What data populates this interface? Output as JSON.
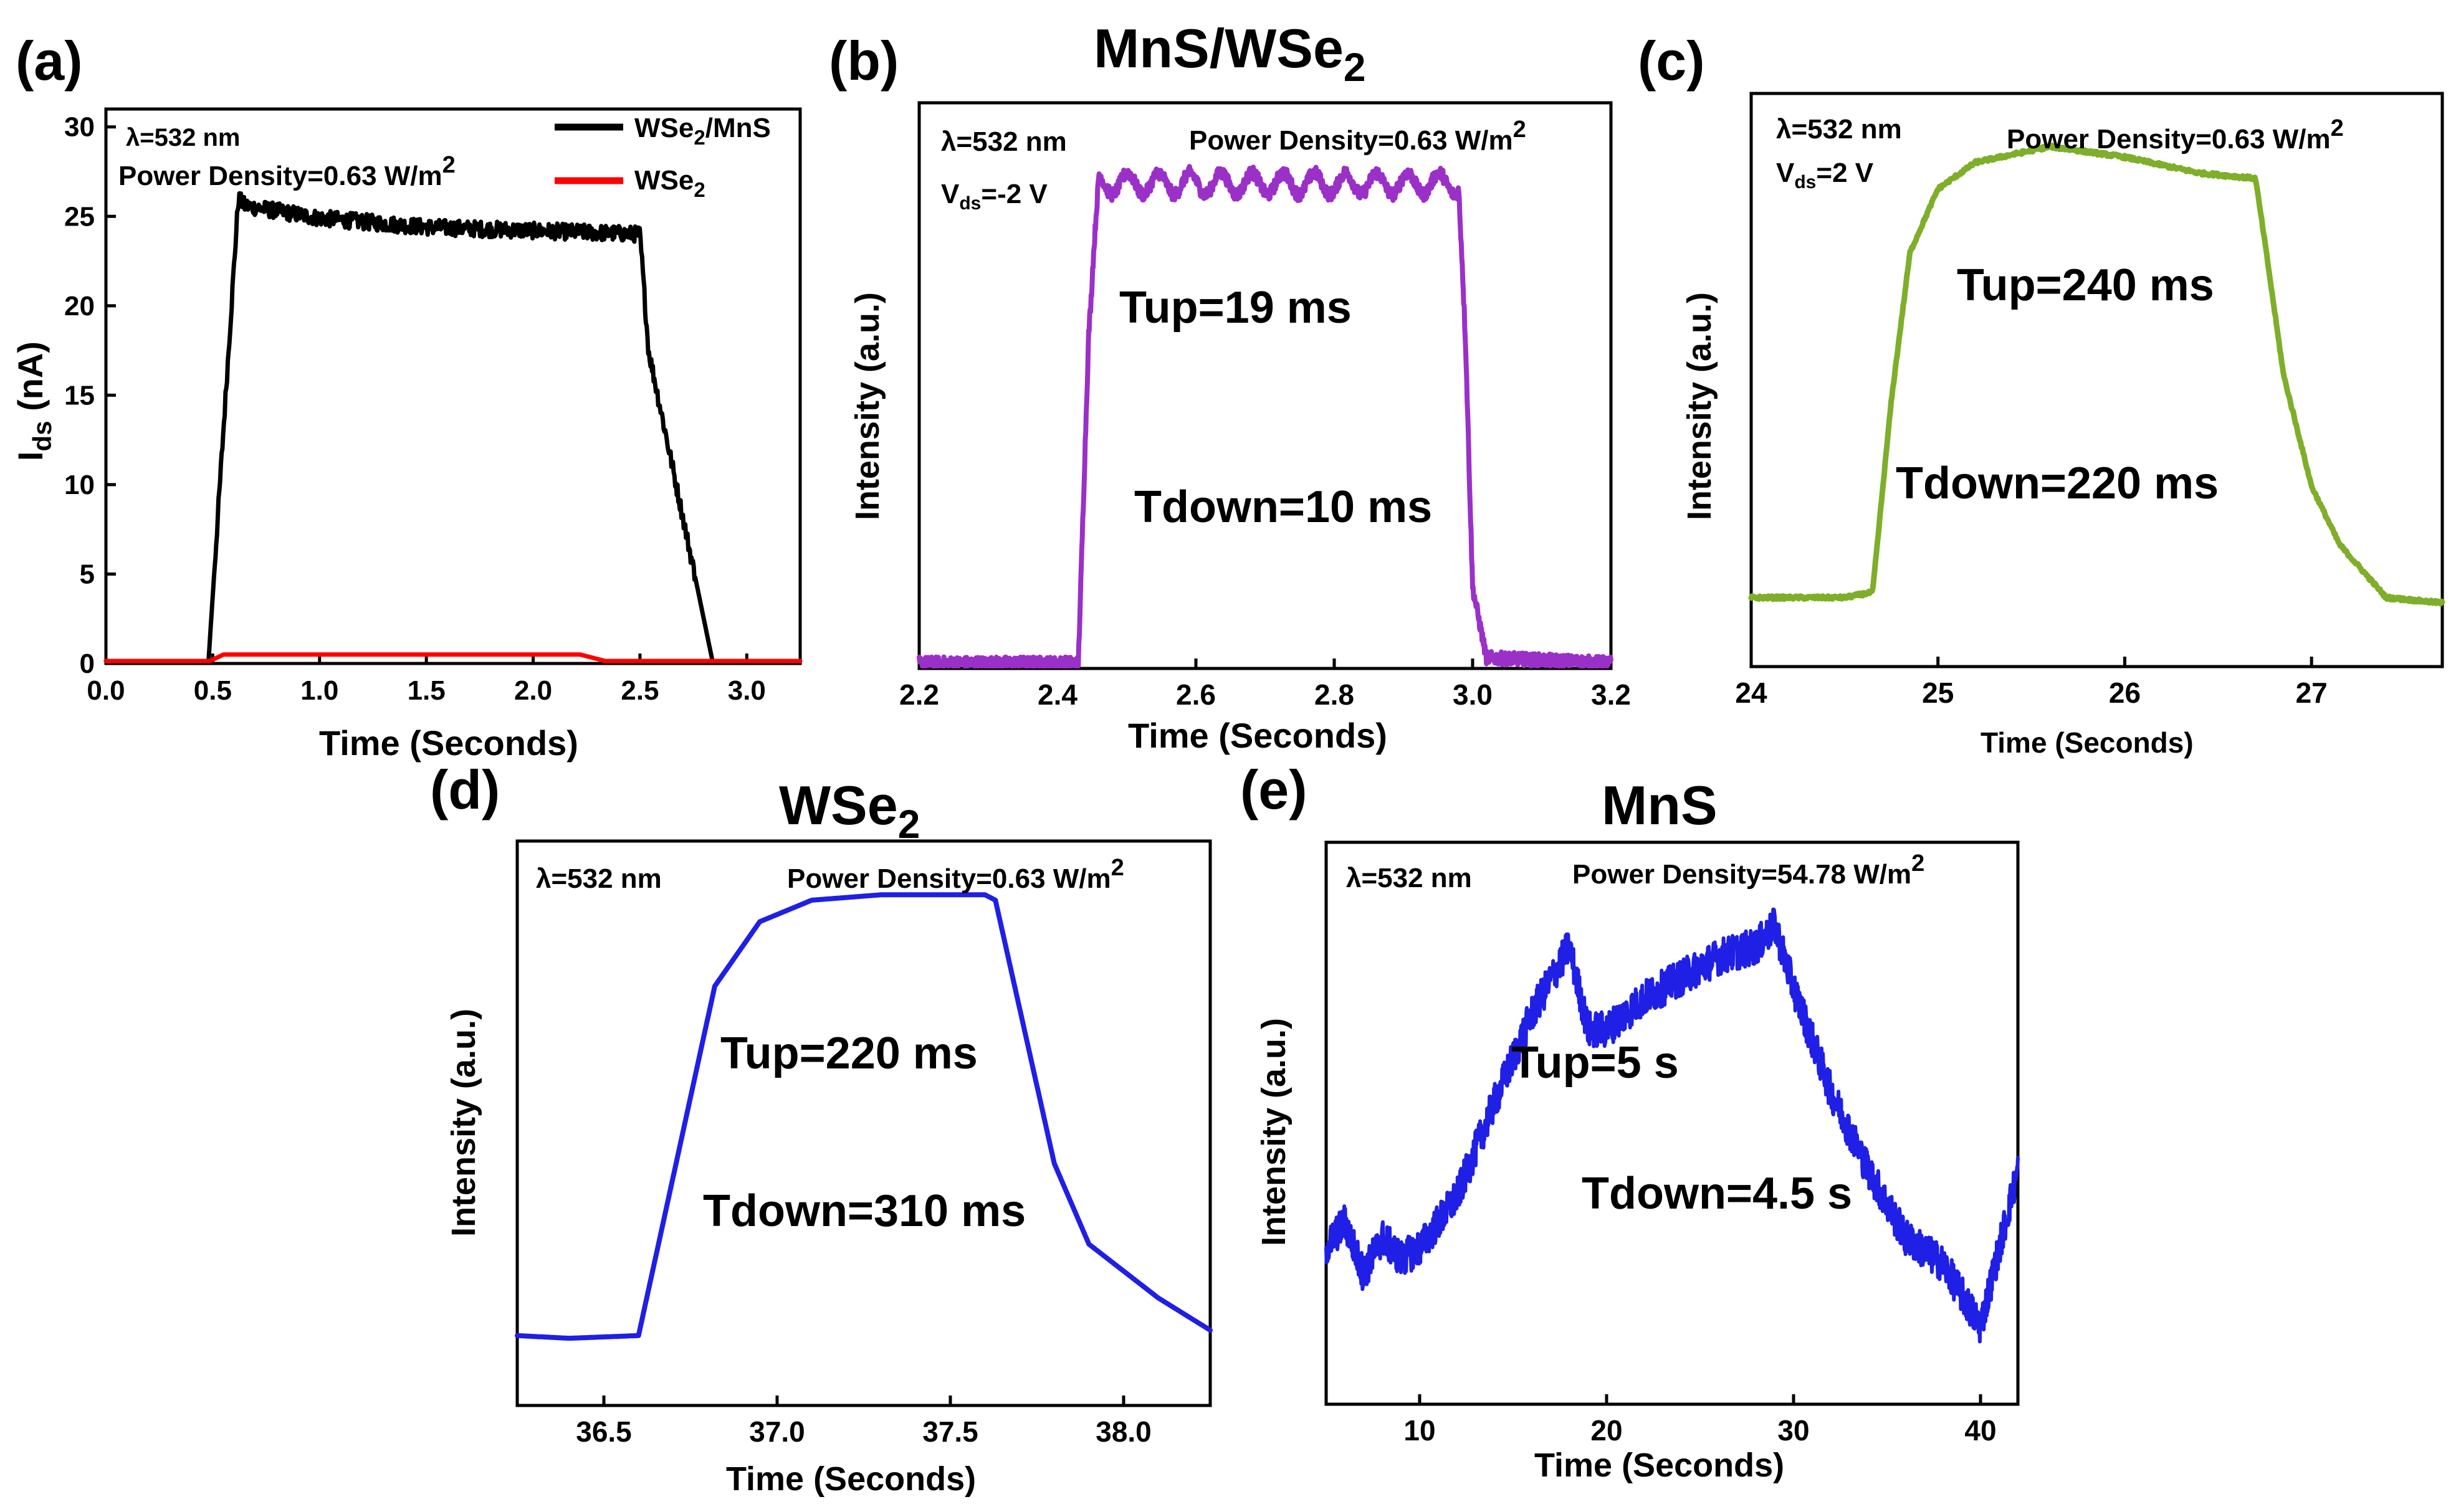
{
  "chart_data": [
    {
      "panel": "(a)",
      "type": "line",
      "title": "",
      "xlabel": "Time (Seconds)",
      "ylabel": "I",
      "ylabel_sub": "ds",
      "ylabel_unit": " (nA)",
      "xlim": [
        0,
        3.25
      ],
      "ylim": [
        0,
        31
      ],
      "xticks": [
        0.0,
        0.5,
        1.0,
        1.5,
        2.0,
        2.5,
        3.0
      ],
      "xtick_labels": [
        "0.0",
        "0.5",
        "1.0",
        "1.5",
        "2.0",
        "2.5",
        "3.0"
      ],
      "yticks": [
        0,
        5,
        10,
        15,
        20,
        25,
        30
      ],
      "ytick_labels": [
        "0",
        "5",
        "10",
        "15",
        "20",
        "25",
        "30"
      ],
      "annotations": [
        {
          "text": "λ=532 nm"
        },
        {
          "text": "Power Density=0.63 W/m",
          "sup": "2"
        }
      ],
      "legend_position": "top-right",
      "series": [
        {
          "name": "WSe",
          "name_sub": "2",
          "name_suffix": "/MnS",
          "color": "#000000",
          "noise": 0.45,
          "x": [
            0.0,
            0.48,
            0.62,
            0.65,
            1.0,
            1.5,
            2.0,
            2.5,
            2.54,
            2.84,
            3.25
          ],
          "y": [
            0.1,
            0.1,
            26.0,
            25.6,
            24.9,
            24.4,
            24.2,
            24.0,
            17.5,
            0.1,
            0.1
          ]
        },
        {
          "name": "WSe",
          "name_sub": "2",
          "name_suffix": "",
          "color": "#ff0000",
          "noise": 0,
          "x": [
            0.0,
            0.48,
            0.55,
            2.22,
            2.35,
            3.25
          ],
          "y": [
            0.1,
            0.1,
            0.5,
            0.5,
            0.1,
            0.1
          ]
        }
      ]
    },
    {
      "panel": "(b)",
      "type": "line",
      "title": "MnS/WSe",
      "title_sub": "2",
      "xlabel": "Time (Seconds)",
      "ylabel": "Intensity (a.u.)",
      "xlim": [
        2.2,
        3.2
      ],
      "ylim": [
        0,
        1.05
      ],
      "xticks": [
        2.2,
        2.4,
        2.6,
        2.8,
        3.0,
        3.2
      ],
      "xtick_labels": [
        "2.2",
        "2.4",
        "2.6",
        "2.8",
        "3.0",
        "3.2"
      ],
      "annotations": [
        {
          "text": "λ=532 nm"
        },
        {
          "text": "V",
          "sub": "ds",
          "suffix": "=-2 V"
        },
        {
          "text": "Power Density=0.63 W/m",
          "sup": "2"
        },
        {
          "text": "Tup=19 ms"
        },
        {
          "text": "Tdown=10 ms"
        }
      ],
      "series": [
        {
          "color": "#9b30c8",
          "noise": 0.012,
          "wave_amp": 0.02,
          "wave_period": 0.045,
          "x": [
            2.2,
            2.43,
            2.445,
            2.46,
            2.98,
            2.99,
            3.0,
            3.02,
            3.2
          ],
          "y": [
            0.01,
            0.01,
            0.62,
            0.9,
            0.9,
            0.6,
            0.15,
            0.02,
            0.01
          ]
        }
      ]
    },
    {
      "panel": "(c)",
      "type": "line",
      "title": "",
      "xlabel": "Time (Seconds)",
      "ylabel": "Intensity (a.u.)",
      "xlim": [
        24,
        27.7
      ],
      "ylim": [
        0,
        1.08
      ],
      "xticks": [
        24,
        25,
        26,
        27
      ],
      "xtick_labels": [
        "24",
        "25",
        "26",
        "27"
      ],
      "annotations": [
        {
          "text": "λ=532 nm"
        },
        {
          "text": "V",
          "sub": "ds",
          "suffix": "=2 V"
        },
        {
          "text": "Power Density=0.63 W/m",
          "sup": "2"
        },
        {
          "text": "Tup=240 ms"
        },
        {
          "text": "Tdown=220 ms"
        }
      ],
      "series": [
        {
          "color": "#7fae2a",
          "noise": 0.003,
          "x": [
            24.0,
            24.5,
            24.65,
            24.75,
            24.85,
            25.0,
            25.2,
            25.6,
            26.0,
            26.4,
            26.7,
            26.75,
            26.85,
            27.0,
            27.15,
            27.4,
            27.7
          ],
          "y": [
            0.13,
            0.13,
            0.14,
            0.5,
            0.78,
            0.9,
            0.95,
            0.98,
            0.96,
            0.93,
            0.92,
            0.8,
            0.55,
            0.34,
            0.23,
            0.13,
            0.12
          ]
        }
      ]
    },
    {
      "panel": "(d)",
      "type": "line",
      "title": "WSe",
      "title_sub": "2",
      "xlabel": "Time (Seconds)",
      "ylabel": "Intensity (a.u.)",
      "xlim": [
        36.25,
        38.25
      ],
      "ylim": [
        0,
        1.05
      ],
      "xticks": [
        36.5,
        37.0,
        37.5,
        38.0
      ],
      "xtick_labels": [
        "36.5",
        "37.0",
        "37.5",
        "38.0"
      ],
      "annotations": [
        {
          "text": "λ=532 nm"
        },
        {
          "text": "Power Density=0.63 W/m",
          "sup": "2"
        },
        {
          "text": "Tup=220 ms"
        },
        {
          "text": "Tdown=310 ms"
        }
      ],
      "series": [
        {
          "color": "#1f1fe6",
          "noise": 0,
          "x": [
            36.25,
            36.4,
            36.6,
            36.82,
            36.95,
            37.1,
            37.3,
            37.6,
            37.63,
            37.8,
            37.9,
            38.1,
            38.25
          ],
          "y": [
            0.13,
            0.125,
            0.13,
            0.78,
            0.9,
            0.94,
            0.95,
            0.95,
            0.94,
            0.45,
            0.3,
            0.2,
            0.14
          ]
        }
      ]
    },
    {
      "panel": "(e)",
      "type": "line",
      "title": "MnS",
      "xlabel": "Time (Seconds)",
      "ylabel": "Intensity (a.u.)",
      "xlim": [
        5,
        42
      ],
      "ylim": [
        0,
        1.08
      ],
      "xticks": [
        10,
        20,
        30,
        40
      ],
      "xtick_labels": [
        "10",
        "20",
        "30",
        "40"
      ],
      "annotations": [
        {
          "text": "λ=532 nm"
        },
        {
          "text": "Power Density=54.78 W/m",
          "sup": "2"
        },
        {
          "text": "Tup=5 s"
        },
        {
          "text": "Tdown=4.5 s"
        }
      ],
      "series": [
        {
          "color": "#1f1fe6",
          "noise": 0.035,
          "x": [
            5,
            6,
            7,
            8,
            9,
            10,
            12,
            14,
            16,
            18,
            19,
            20,
            22,
            24,
            26,
            28,
            29,
            30,
            32,
            34,
            36,
            38,
            40,
            41,
            42
          ],
          "y": [
            0.3,
            0.35,
            0.25,
            0.32,
            0.28,
            0.3,
            0.4,
            0.58,
            0.75,
            0.88,
            0.72,
            0.72,
            0.78,
            0.82,
            0.86,
            0.88,
            0.92,
            0.8,
            0.6,
            0.45,
            0.32,
            0.27,
            0.15,
            0.3,
            0.45
          ]
        }
      ]
    }
  ]
}
